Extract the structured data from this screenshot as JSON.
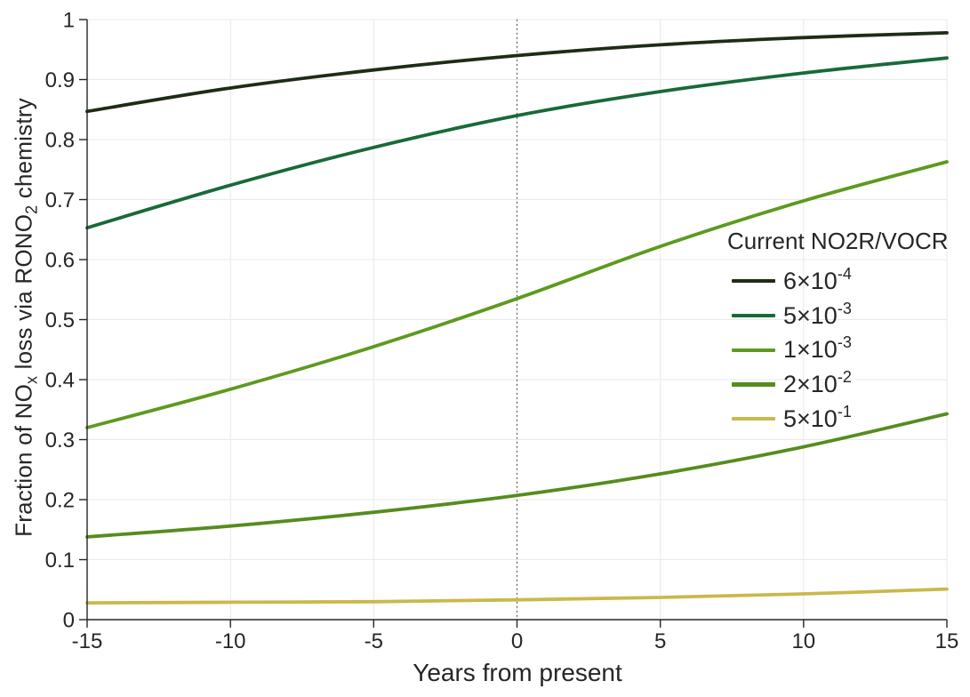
{
  "figure": {
    "background": "#ffffff",
    "axis_color": "#262626",
    "grid_color": "#e8e8e8",
    "text_color": "#262626",
    "reference_line_color": "#4d4d4d"
  },
  "chart_data": {
    "type": "line",
    "title": "",
    "xlabel": "Years from present",
    "ylabel": "Fraction of NOx loss via RONO2 chemistry",
    "ylabel_parts": [
      "Fraction of NO",
      "x",
      " loss via RONO",
      "2",
      " chemistry"
    ],
    "xlim": [
      -15,
      15
    ],
    "ylim": [
      0,
      1
    ],
    "xticks": [
      -15,
      -10,
      -5,
      0,
      5,
      10,
      15
    ],
    "yticks": [
      0,
      0.1,
      0.2,
      0.3,
      0.4,
      0.5,
      0.6,
      0.7,
      0.8,
      0.9,
      1
    ],
    "grid": true,
    "reference_line_x": 0,
    "legend": {
      "title": "Current NO2R/VOCR",
      "position": "right-middle"
    },
    "x": [
      -15,
      -10,
      -5,
      0,
      5,
      10,
      15
    ],
    "series": [
      {
        "id": "6e-4",
        "name": "6×10⁻⁴",
        "legend_base": "6×10",
        "legend_exp": "-4",
        "ratio": 0.0006,
        "color": "#1f2c15",
        "values": [
          0.847,
          0.886,
          0.916,
          0.94,
          0.958,
          0.97,
          0.978
        ]
      },
      {
        "id": "5e-3",
        "name": "5×10⁻³",
        "legend_base": "5×10",
        "legend_exp": "-3",
        "ratio": 0.005,
        "color": "#186a38",
        "values": [
          0.653,
          0.724,
          0.787,
          0.84,
          0.88,
          0.911,
          0.936
        ]
      },
      {
        "id": "1e-3",
        "name": "1×10⁻³",
        "legend_base": "1×10",
        "legend_exp": "-3",
        "ratio": 0.001,
        "color": "#5d9a1f",
        "values": [
          0.32,
          0.384,
          0.455,
          0.535,
          0.622,
          0.698,
          0.763
        ]
      },
      {
        "id": "2e-2",
        "name": "2×10⁻²",
        "legend_base": "2×10",
        "legend_exp": "-2",
        "ratio": 0.02,
        "color": "#568c1e",
        "values": [
          0.138,
          0.156,
          0.179,
          0.207,
          0.243,
          0.288,
          0.343
        ]
      },
      {
        "id": "5e-1",
        "name": "5×10⁻¹",
        "legend_base": "5×10",
        "legend_exp": "-1",
        "ratio": 0.5,
        "color": "#cbb84b",
        "values": [
          0.028,
          0.029,
          0.03,
          0.033,
          0.037,
          0.043,
          0.051
        ]
      }
    ]
  }
}
